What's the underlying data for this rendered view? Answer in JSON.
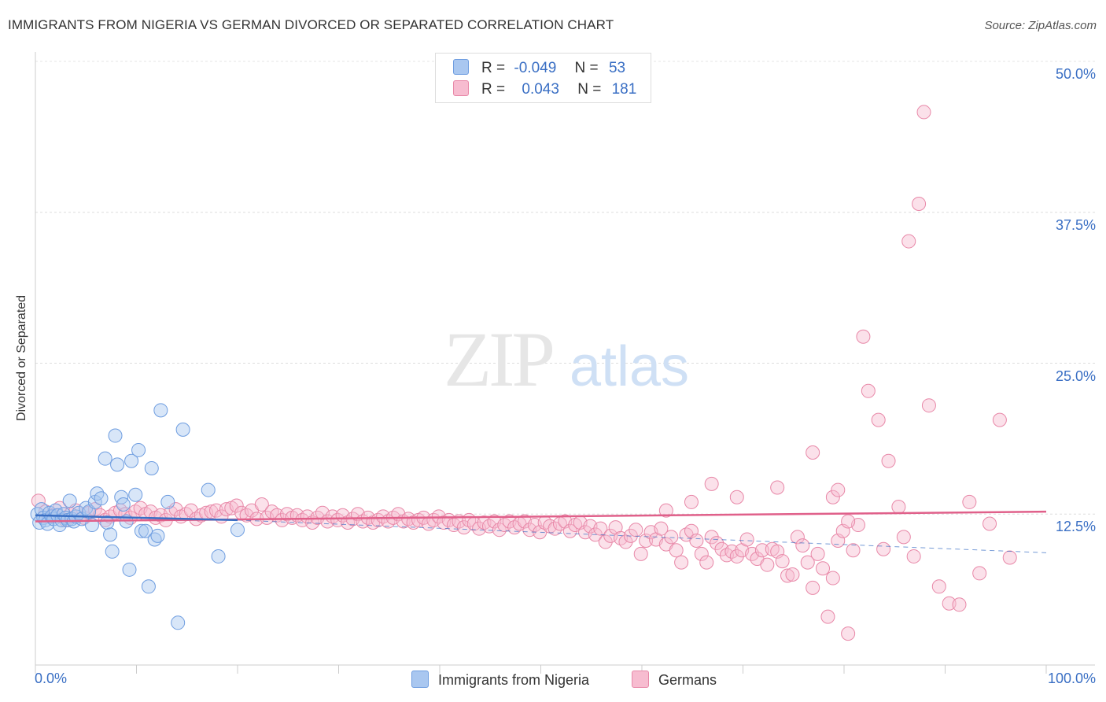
{
  "title": "IMMIGRANTS FROM NIGERIA VS GERMAN DIVORCED OR SEPARATED CORRELATION CHART",
  "source": "Source: ZipAtlas.com",
  "watermark": {
    "zip": "ZIP",
    "atlas": "atlas"
  },
  "legend": {
    "rows": [
      {
        "r_label": "R =",
        "r_value": "-0.049",
        "n_label": "N =",
        "n_value": "53",
        "color": "#a9c7f0",
        "border": "#6e9de0"
      },
      {
        "r_label": "R =",
        "r_value": "0.043",
        "n_label": "N =",
        "n_value": "181",
        "color": "#f7bcd0",
        "border": "#e888a8"
      }
    ]
  },
  "colors": {
    "series1": "#6e9de0",
    "series1_fill": "#a9c7f0",
    "series2": "#e888a8",
    "series2_fill": "#f7bcd0",
    "trend1": "#3a6fc4",
    "trend2": "#e0608a",
    "grid": "#dddddd",
    "tick_text": "#3a6fc4"
  },
  "chart_data": {
    "type": "scatter",
    "title": "IMMIGRANTS FROM NIGERIA VS GERMAN DIVORCED OR SEPARATED CORRELATION CHART",
    "xlabel": "",
    "ylabel": "Divorced or Separated",
    "xlim": [
      0,
      100
    ],
    "ylim": [
      0,
      50
    ],
    "x_tick_labels": [
      "0.0%",
      "100.0%"
    ],
    "y_ticks": [
      12.5,
      25.0,
      37.5,
      50.0
    ],
    "y_tick_labels": [
      "12.5%",
      "25.0%",
      "37.5%",
      "50.0%"
    ],
    "grid": true,
    "legend_placement": "bottom",
    "series": [
      {
        "name": "Immigrants from Nigeria",
        "r": -0.049,
        "n": 53,
        "trend": {
          "x": [
            0,
            20
          ],
          "y": [
            12.4,
            12.0
          ]
        },
        "points": [
          [
            0.2,
            12.5
          ],
          [
            0.4,
            11.8
          ],
          [
            0.6,
            12.9
          ],
          [
            0.8,
            12.2
          ],
          [
            1.0,
            12.0
          ],
          [
            1.2,
            11.7
          ],
          [
            1.4,
            12.6
          ],
          [
            1.6,
            12.3
          ],
          [
            1.8,
            12.1
          ],
          [
            2.0,
            12.8
          ],
          [
            2.2,
            12.4
          ],
          [
            2.4,
            11.6
          ],
          [
            2.6,
            12.0
          ],
          [
            2.8,
            12.5
          ],
          [
            3.0,
            12.2
          ],
          [
            3.2,
            12.0
          ],
          [
            3.4,
            13.6
          ],
          [
            3.6,
            12.1
          ],
          [
            3.8,
            11.9
          ],
          [
            4.0,
            12.3
          ],
          [
            4.3,
            12.6
          ],
          [
            4.6,
            12.1
          ],
          [
            5.0,
            13.0
          ],
          [
            5.3,
            12.7
          ],
          [
            5.6,
            11.6
          ],
          [
            5.9,
            13.5
          ],
          [
            6.1,
            14.2
          ],
          [
            6.5,
            13.8
          ],
          [
            6.9,
            17.1
          ],
          [
            7.1,
            11.8
          ],
          [
            7.4,
            10.8
          ],
          [
            7.6,
            9.4
          ],
          [
            7.9,
            19.0
          ],
          [
            8.1,
            16.6
          ],
          [
            8.5,
            13.9
          ],
          [
            8.7,
            13.3
          ],
          [
            9.0,
            11.9
          ],
          [
            9.3,
            7.9
          ],
          [
            9.5,
            16.9
          ],
          [
            9.9,
            14.1
          ],
          [
            10.2,
            17.8
          ],
          [
            10.5,
            11.1
          ],
          [
            10.9,
            11.1
          ],
          [
            11.2,
            6.5
          ],
          [
            11.5,
            16.3
          ],
          [
            11.8,
            10.4
          ],
          [
            12.1,
            10.7
          ],
          [
            12.4,
            21.1
          ],
          [
            13.1,
            13.5
          ],
          [
            14.1,
            3.5
          ],
          [
            14.6,
            19.5
          ],
          [
            17.1,
            14.5
          ],
          [
            18.1,
            9.0
          ],
          [
            20.0,
            11.2
          ]
        ]
      },
      {
        "name": "Germans",
        "r": 0.043,
        "n": 181,
        "trend": {
          "x": [
            0,
            100
          ],
          "y": [
            11.9,
            12.7
          ]
        },
        "dashed_extension": {
          "x": [
            20,
            100
          ],
          "y": [
            12.0,
            9.3
          ]
        },
        "points": [
          [
            0.3,
            13.6
          ],
          [
            1.0,
            12.7
          ],
          [
            1.8,
            12.4
          ],
          [
            2.4,
            13.0
          ],
          [
            3.0,
            12.0
          ],
          [
            3.5,
            12.5
          ],
          [
            4.0,
            12.8
          ],
          [
            4.8,
            12.2
          ],
          [
            5.3,
            12.6
          ],
          [
            5.9,
            12.9
          ],
          [
            6.4,
            12.4
          ],
          [
            6.9,
            12.0
          ],
          [
            7.4,
            12.3
          ],
          [
            7.9,
            12.6
          ],
          [
            8.4,
            12.8
          ],
          [
            8.9,
            12.5
          ],
          [
            9.4,
            12.2
          ],
          [
            9.9,
            12.7
          ],
          [
            10.4,
            13.0
          ],
          [
            10.9,
            12.5
          ],
          [
            11.4,
            12.7
          ],
          [
            11.9,
            12.2
          ],
          [
            12.4,
            12.4
          ],
          [
            12.9,
            12.0
          ],
          [
            13.4,
            12.6
          ],
          [
            13.9,
            12.9
          ],
          [
            14.4,
            12.3
          ],
          [
            14.9,
            12.5
          ],
          [
            15.4,
            12.8
          ],
          [
            15.9,
            12.1
          ],
          [
            16.4,
            12.4
          ],
          [
            16.9,
            12.6
          ],
          [
            17.4,
            12.7
          ],
          [
            17.9,
            12.8
          ],
          [
            18.4,
            12.3
          ],
          [
            18.9,
            12.9
          ],
          [
            19.4,
            13.0
          ],
          [
            19.9,
            13.2
          ],
          [
            20.4,
            12.6
          ],
          [
            20.9,
            12.4
          ],
          [
            21.4,
            12.8
          ],
          [
            21.9,
            12.1
          ],
          [
            22.4,
            13.3
          ],
          [
            22.9,
            12.2
          ],
          [
            23.4,
            12.7
          ],
          [
            23.9,
            12.4
          ],
          [
            24.4,
            12.0
          ],
          [
            24.9,
            12.5
          ],
          [
            25.4,
            12.2
          ],
          [
            25.9,
            12.4
          ],
          [
            26.4,
            12.0
          ],
          [
            26.9,
            12.3
          ],
          [
            27.4,
            11.8
          ],
          [
            27.9,
            12.2
          ],
          [
            28.4,
            12.6
          ],
          [
            28.9,
            11.9
          ],
          [
            29.4,
            12.3
          ],
          [
            29.9,
            12.0
          ],
          [
            30.4,
            12.4
          ],
          [
            30.9,
            11.8
          ],
          [
            31.4,
            12.1
          ],
          [
            31.9,
            12.5
          ],
          [
            32.4,
            11.9
          ],
          [
            32.9,
            12.2
          ],
          [
            33.4,
            11.8
          ],
          [
            33.9,
            12.0
          ],
          [
            34.4,
            12.3
          ],
          [
            34.9,
            11.9
          ],
          [
            35.4,
            12.2
          ],
          [
            35.9,
            12.5
          ],
          [
            36.4,
            11.9
          ],
          [
            36.9,
            12.1
          ],
          [
            37.4,
            11.8
          ],
          [
            37.9,
            12.0
          ],
          [
            38.4,
            12.2
          ],
          [
            38.9,
            11.7
          ],
          [
            39.4,
            12.0
          ],
          [
            39.9,
            12.3
          ],
          [
            40.4,
            11.8
          ],
          [
            40.9,
            12.0
          ],
          [
            41.4,
            11.6
          ],
          [
            41.9,
            11.9
          ],
          [
            42.4,
            11.4
          ],
          [
            42.9,
            12.0
          ],
          [
            43.4,
            11.7
          ],
          [
            43.9,
            11.3
          ],
          [
            44.4,
            11.8
          ],
          [
            44.9,
            11.5
          ],
          [
            45.4,
            11.9
          ],
          [
            45.9,
            11.2
          ],
          [
            46.4,
            11.6
          ],
          [
            46.9,
            11.9
          ],
          [
            47.4,
            11.4
          ],
          [
            47.9,
            11.7
          ],
          [
            48.4,
            11.9
          ],
          [
            48.9,
            11.2
          ],
          [
            49.4,
            11.6
          ],
          [
            49.9,
            11.0
          ],
          [
            50.4,
            11.8
          ],
          [
            50.9,
            11.5
          ],
          [
            51.4,
            11.3
          ],
          [
            51.9,
            11.7
          ],
          [
            52.4,
            11.9
          ],
          [
            52.9,
            11.1
          ],
          [
            53.4,
            11.6
          ],
          [
            53.9,
            11.8
          ],
          [
            54.4,
            11.0
          ],
          [
            54.9,
            11.5
          ],
          [
            55.4,
            10.8
          ],
          [
            55.9,
            11.3
          ],
          [
            56.4,
            10.2
          ],
          [
            56.9,
            10.7
          ],
          [
            57.4,
            11.4
          ],
          [
            57.9,
            10.5
          ],
          [
            58.4,
            10.2
          ],
          [
            58.9,
            10.7
          ],
          [
            59.4,
            11.2
          ],
          [
            59.9,
            9.2
          ],
          [
            60.4,
            10.3
          ],
          [
            60.9,
            11.0
          ],
          [
            61.4,
            10.4
          ],
          [
            61.9,
            11.3
          ],
          [
            62.4,
            10.0
          ],
          [
            62.9,
            10.6
          ],
          [
            63.4,
            9.5
          ],
          [
            63.9,
            8.5
          ],
          [
            64.4,
            10.8
          ],
          [
            64.9,
            11.1
          ],
          [
            65.4,
            10.3
          ],
          [
            65.9,
            9.2
          ],
          [
            66.4,
            8.5
          ],
          [
            66.9,
            10.6
          ],
          [
            67.4,
            10.1
          ],
          [
            67.9,
            9.6
          ],
          [
            68.4,
            9.1
          ],
          [
            68.9,
            9.4
          ],
          [
            69.4,
            9.0
          ],
          [
            69.9,
            9.5
          ],
          [
            70.4,
            10.4
          ],
          [
            70.9,
            9.2
          ],
          [
            71.4,
            8.8
          ],
          [
            71.9,
            9.5
          ],
          [
            72.4,
            8.3
          ],
          [
            72.9,
            9.6
          ],
          [
            73.4,
            9.4
          ],
          [
            73.9,
            8.6
          ],
          [
            74.4,
            7.4
          ],
          [
            74.9,
            7.5
          ],
          [
            75.4,
            10.6
          ],
          [
            75.9,
            9.9
          ],
          [
            76.4,
            8.5
          ],
          [
            76.9,
            6.4
          ],
          [
            77.4,
            9.2
          ],
          [
            77.9,
            8.0
          ],
          [
            78.4,
            4.0
          ],
          [
            78.9,
            7.2
          ],
          [
            79.4,
            10.3
          ],
          [
            79.9,
            11.1
          ],
          [
            80.4,
            2.6
          ],
          [
            80.9,
            9.5
          ],
          [
            81.4,
            11.6
          ],
          [
            81.9,
            27.2
          ],
          [
            82.4,
            22.7
          ],
          [
            83.4,
            20.3
          ],
          [
            84.4,
            16.9
          ],
          [
            85.4,
            13.1
          ],
          [
            86.4,
            35.1
          ],
          [
            87.4,
            38.2
          ],
          [
            87.9,
            45.8
          ],
          [
            88.4,
            21.5
          ],
          [
            89.4,
            6.5
          ],
          [
            90.4,
            5.1
          ],
          [
            91.4,
            5.0
          ],
          [
            92.4,
            13.5
          ],
          [
            93.4,
            7.6
          ],
          [
            94.4,
            11.7
          ],
          [
            95.4,
            20.3
          ],
          [
            96.4,
            8.9
          ],
          [
            76.9,
            17.6
          ],
          [
            73.4,
            14.7
          ],
          [
            66.9,
            15.0
          ],
          [
            64.9,
            13.5
          ],
          [
            62.4,
            12.8
          ],
          [
            69.4,
            13.9
          ],
          [
            78.9,
            13.9
          ],
          [
            80.4,
            11.9
          ],
          [
            79.4,
            14.5
          ],
          [
            83.9,
            9.6
          ],
          [
            85.9,
            10.6
          ],
          [
            86.9,
            9.0
          ]
        ]
      }
    ]
  },
  "bottom_legend": [
    {
      "label": "Immigrants from Nigeria",
      "color": "#a9c7f0",
      "border": "#6e9de0"
    },
    {
      "label": "Germans",
      "color": "#f7bcd0",
      "border": "#e888a8"
    }
  ]
}
